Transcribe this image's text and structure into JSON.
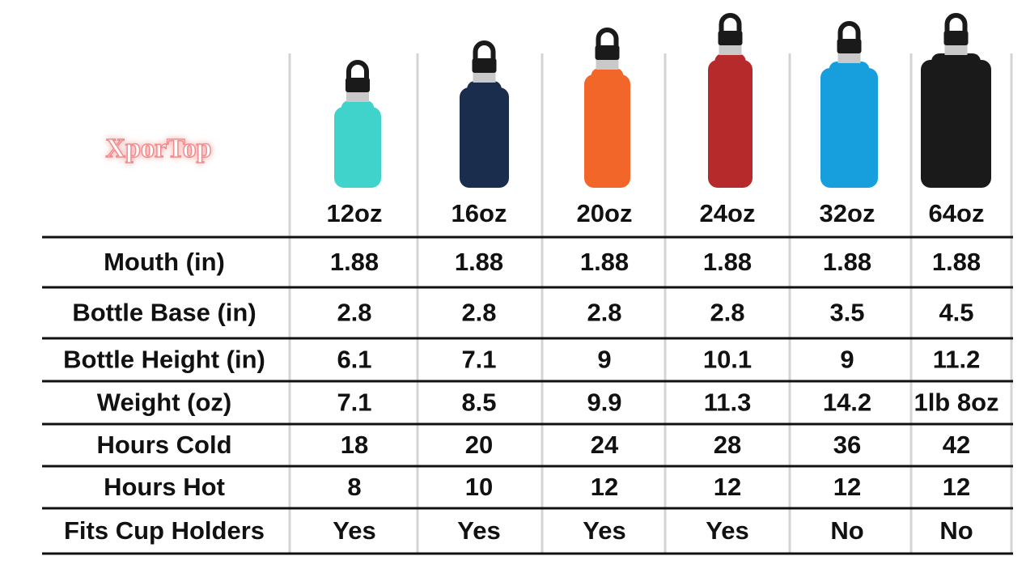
{
  "header": {
    "watermark": "XporTop"
  },
  "table": {
    "columns": [
      "12oz",
      "16oz",
      "20oz",
      "24oz",
      "32oz",
      "64oz"
    ],
    "rows": [
      {
        "label": "Mouth (in)",
        "values": [
          "1.88",
          "1.88",
          "1.88",
          "1.88",
          "1.88",
          "1.88"
        ]
      },
      {
        "label": "Bottle Base (in)",
        "values": [
          "2.8",
          "2.8",
          "2.8",
          "2.8",
          "3.5",
          "4.5"
        ]
      },
      {
        "label": "Bottle Height (in)",
        "values": [
          "6.1",
          "7.1",
          "9",
          "10.1",
          "9",
          "11.2"
        ]
      },
      {
        "label": "Weight (oz)",
        "values": [
          "7.1",
          "8.5",
          "9.9",
          "11.3",
          "14.2",
          "1lb 8oz"
        ]
      },
      {
        "label": "Hours Cold",
        "values": [
          "18",
          "20",
          "24",
          "28",
          "36",
          "42"
        ]
      },
      {
        "label": "Hours Hot",
        "values": [
          "8",
          "10",
          "12",
          "12",
          "12",
          "12"
        ]
      },
      {
        "label": "Fits Cup Holders",
        "values": [
          "Yes",
          "Yes",
          "Yes",
          "Yes",
          "No",
          "No"
        ]
      }
    ]
  }
}
